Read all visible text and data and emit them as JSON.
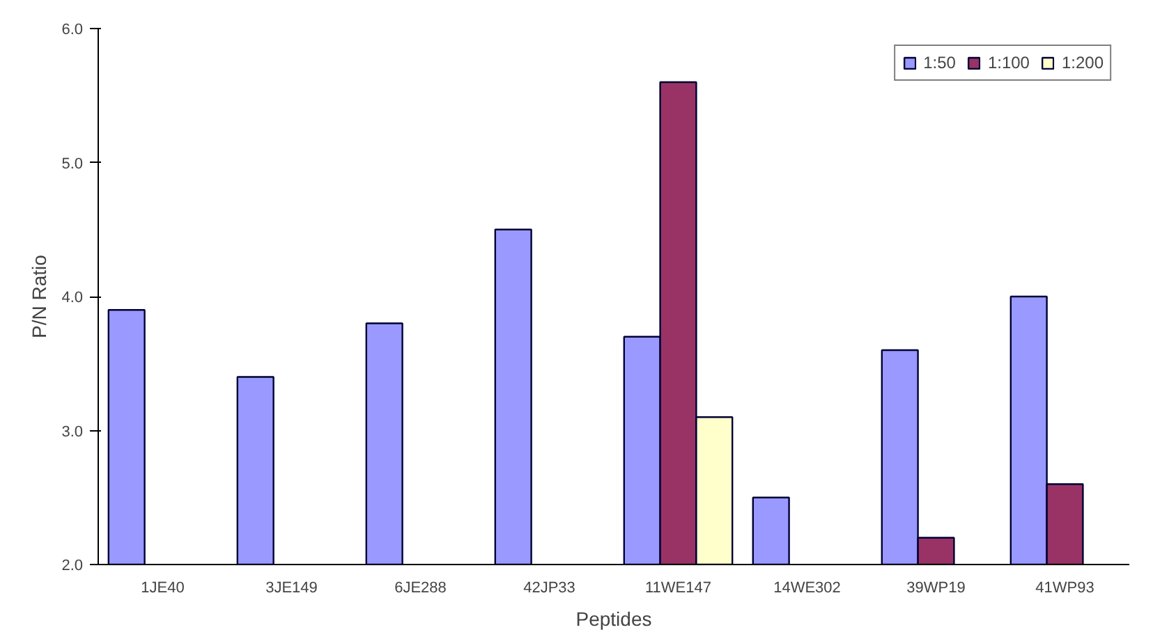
{
  "chart_data": {
    "type": "bar",
    "xlabel": "Peptides",
    "ylabel": "P/N Ratio",
    "categories": [
      "1JE40",
      "3JE149",
      "6JE288",
      "42JP33",
      "11WE147",
      "14WE302",
      "39WP19",
      "41WP93"
    ],
    "series": [
      {
        "name": "1:50",
        "color": "#9999ff",
        "values": [
          3.9,
          3.4,
          3.8,
          4.5,
          3.7,
          2.5,
          3.6,
          4.0
        ]
      },
      {
        "name": "1:100",
        "color": "#993366",
        "values": [
          null,
          null,
          null,
          null,
          5.6,
          null,
          2.2,
          2.6
        ]
      },
      {
        "name": "1:200",
        "color": "#ffffcc",
        "values": [
          null,
          null,
          null,
          null,
          3.1,
          null,
          null,
          null
        ]
      }
    ],
    "ylim": [
      2.0,
      6.0
    ],
    "yticks": [
      {
        "value": 2,
        "label": "2.0"
      },
      {
        "value": 3,
        "label": "3.0"
      },
      {
        "value": 4,
        "label": "4.0"
      },
      {
        "value": 5,
        "label": "5.0"
      },
      {
        "value": 6,
        "label": "6.0"
      }
    ],
    "grid": false,
    "legend": "top right"
  }
}
